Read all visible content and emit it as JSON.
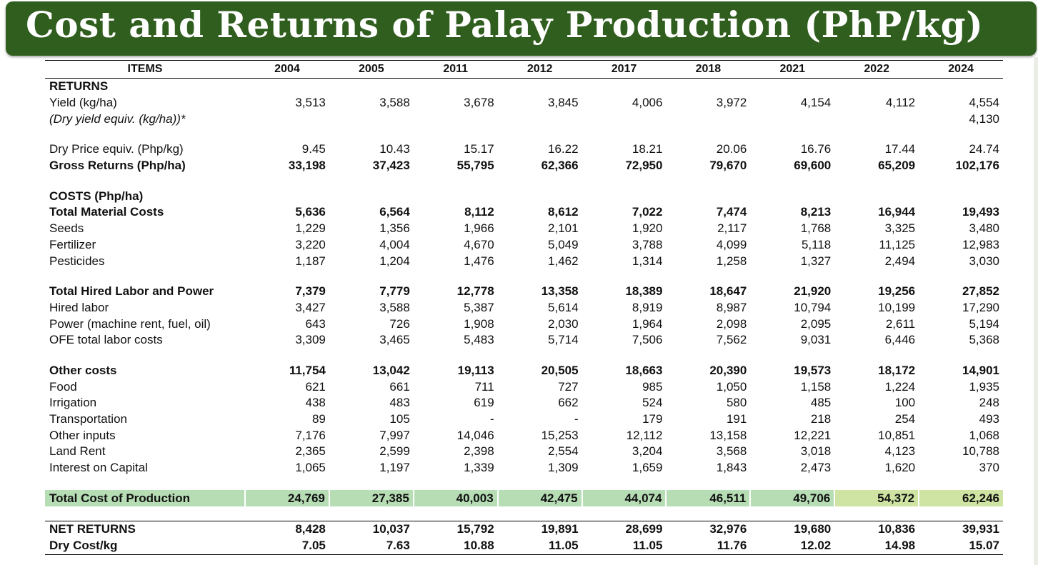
{
  "title": "Cost and Returns of Palay Production (PhP/kg)",
  "header": {
    "items_label": "ITEMS",
    "years": [
      "2004",
      "2005",
      "2011",
      "2012",
      "2017",
      "2018",
      "2021",
      "2022",
      "2024"
    ]
  },
  "rows": [
    {
      "label": "RETURNS",
      "values": [
        "",
        "",
        "",
        "",
        "",
        "",
        "",
        "",
        ""
      ]
    },
    {
      "label": "Yield (kg/ha)",
      "values": [
        "3,513",
        "3,588",
        "3,678",
        "3,845",
        "4,006",
        "3,972",
        "4,154",
        "4,112",
        "4,554"
      ]
    },
    {
      "label": "(Dry yield equiv. (kg/ha))*",
      "values": [
        "",
        "",
        "",
        "",
        "",
        "",
        "",
        "",
        "4,130"
      ]
    },
    {
      "label": "",
      "values": [
        "",
        "",
        "",
        "",
        "",
        "",
        "",
        "",
        ""
      ]
    },
    {
      "label": "Dry Price equiv. (Php/kg)",
      "values": [
        "9.45",
        "10.43",
        "15.17",
        "16.22",
        "18.21",
        "20.06",
        "16.76",
        "17.44",
        "24.74"
      ]
    },
    {
      "label": "Gross Returns (Php/ha)",
      "values": [
        "33,198",
        "37,423",
        "55,795",
        "62,366",
        "72,950",
        "79,670",
        "69,600",
        "65,209",
        "102,176"
      ]
    },
    {
      "label": "",
      "values": [
        "",
        "",
        "",
        "",
        "",
        "",
        "",
        "",
        ""
      ]
    },
    {
      "label": "COSTS (Php/ha)",
      "values": [
        "",
        "",
        "",
        "",
        "",
        "",
        "",
        "",
        ""
      ]
    },
    {
      "label": "Total Material Costs",
      "values": [
        "5,636",
        "6,564",
        "8,112",
        "8,612",
        "7,022",
        "7,474",
        "8,213",
        "16,944",
        "19,493"
      ]
    },
    {
      "label": "Seeds",
      "values": [
        "1,229",
        "1,356",
        "1,966",
        "2,101",
        "1,920",
        "2,117",
        "1,768",
        "3,325",
        "3,480"
      ]
    },
    {
      "label": "Fertilizer",
      "values": [
        "3,220",
        "4,004",
        "4,670",
        "5,049",
        "3,788",
        "4,099",
        "5,118",
        "11,125",
        "12,983"
      ]
    },
    {
      "label": "Pesticides",
      "values": [
        "1,187",
        "1,204",
        "1,476",
        "1,462",
        "1,314",
        "1,258",
        "1,327",
        "2,494",
        "3,030"
      ]
    },
    {
      "label": "",
      "values": [
        "",
        "",
        "",
        "",
        "",
        "",
        "",
        "",
        ""
      ]
    },
    {
      "label": "Total Hired Labor and Power",
      "values": [
        "7,379",
        "7,779",
        "12,778",
        "13,358",
        "18,389",
        "18,647",
        "21,920",
        "19,256",
        "27,852"
      ]
    },
    {
      "label": "Hired labor",
      "values": [
        "3,427",
        "3,588",
        "5,387",
        "5,614",
        "8,919",
        "8,987",
        "10,794",
        "10,199",
        "17,290"
      ]
    },
    {
      "label": "Power (machine rent, fuel, oil)",
      "values": [
        "643",
        "726",
        "1,908",
        "2,030",
        "1,964",
        "2,098",
        "2,095",
        "2,611",
        "5,194"
      ]
    },
    {
      "label": "OFE total labor costs",
      "values": [
        "3,309",
        "3,465",
        "5,483",
        "5,714",
        "7,506",
        "7,562",
        "9,031",
        "6,446",
        "5,368"
      ]
    },
    {
      "label": "",
      "values": [
        "",
        "",
        "",
        "",
        "",
        "",
        "",
        "",
        ""
      ]
    },
    {
      "label": "Other costs",
      "values": [
        "11,754",
        "13,042",
        "19,113",
        "20,505",
        "18,663",
        "20,390",
        "19,573",
        "18,172",
        "14,901"
      ]
    },
    {
      "label": "Food",
      "values": [
        "621",
        "661",
        "711",
        "727",
        "985",
        "1,050",
        "1,158",
        "1,224",
        "1,935"
      ]
    },
    {
      "label": "Irrigation",
      "values": [
        "438",
        "483",
        "619",
        "662",
        "524",
        "580",
        "485",
        "100",
        "248"
      ]
    },
    {
      "label": "Transportation",
      "values": [
        "89",
        "105",
        "-",
        "-",
        "179",
        "191",
        "218",
        "254",
        "493"
      ]
    },
    {
      "label": "Other inputs",
      "values": [
        "7,176",
        "7,997",
        "14,046",
        "15,253",
        "12,112",
        "13,158",
        "12,221",
        "10,851",
        "1,068"
      ]
    },
    {
      "label": "Land Rent",
      "values": [
        "2,365",
        "2,599",
        "2,398",
        "2,554",
        "3,204",
        "3,568",
        "3,018",
        "4,123",
        "10,788"
      ]
    },
    {
      "label": "Interest on Capital",
      "values": [
        "1,065",
        "1,197",
        "1,339",
        "1,309",
        "1,659",
        "1,843",
        "2,473",
        "1,620",
        "370"
      ]
    },
    {
      "label": "",
      "values": [
        "",
        "",
        "",
        "",
        "",
        "",
        "",
        "",
        ""
      ]
    },
    {
      "label": "Total Cost of Production",
      "values": [
        "24,769",
        "27,385",
        "40,003",
        "42,475",
        "44,074",
        "46,511",
        "49,706",
        "54,372",
        "62,246"
      ]
    },
    {
      "label": "",
      "values": [
        "",
        "",
        "",
        "",
        "",
        "",
        "",
        "",
        ""
      ]
    },
    {
      "label": "NET RETURNS",
      "values": [
        "8,428",
        "10,037",
        "15,792",
        "19,891",
        "28,699",
        "32,976",
        "19,680",
        "10,836",
        "39,931"
      ]
    },
    {
      "label": "Dry Cost/kg",
      "values": [
        "7.05",
        "7.63",
        "10.88",
        "11.05",
        "11.05",
        "11.76",
        "12.02",
        "14.98",
        "15.07"
      ]
    }
  ],
  "colors": {
    "title_bar": "#305e1e",
    "total_row": "#b7ddb5",
    "total_row_recent": "#cfe3a2"
  }
}
